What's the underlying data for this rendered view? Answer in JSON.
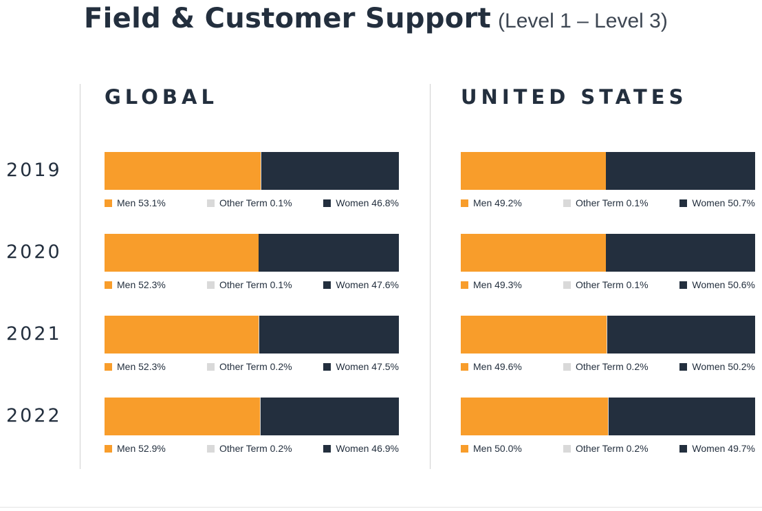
{
  "title": "Field & Customer Support",
  "subtitle": "(Level 1 – Level 3)",
  "colors": {
    "men": "#f89d2b",
    "other": "#d9d9d9",
    "women": "#232f3e"
  },
  "chart_data": [
    {
      "type": "bar",
      "stacked": true,
      "orientation": "horizontal",
      "title": "GLOBAL",
      "categories": [
        "2019",
        "2020",
        "2021",
        "2022"
      ],
      "series": [
        {
          "name": "Men",
          "values": [
            53.1,
            52.3,
            52.3,
            52.9
          ]
        },
        {
          "name": "Other Term",
          "values": [
            0.1,
            0.1,
            0.2,
            0.2
          ]
        },
        {
          "name": "Women",
          "values": [
            46.8,
            47.6,
            47.5,
            46.9
          ]
        }
      ],
      "unit": "%",
      "xlim": [
        0,
        100
      ]
    },
    {
      "type": "bar",
      "stacked": true,
      "orientation": "horizontal",
      "title": "UNITED STATES",
      "categories": [
        "2019",
        "2020",
        "2021",
        "2022"
      ],
      "series": [
        {
          "name": "Men",
          "values": [
            49.2,
            49.3,
            49.6,
            50.0
          ]
        },
        {
          "name": "Other Term",
          "values": [
            0.1,
            0.1,
            0.2,
            0.2
          ]
        },
        {
          "name": "Women",
          "values": [
            50.7,
            50.6,
            50.2,
            49.7
          ]
        }
      ],
      "unit": "%",
      "xlim": [
        0,
        100
      ]
    }
  ]
}
